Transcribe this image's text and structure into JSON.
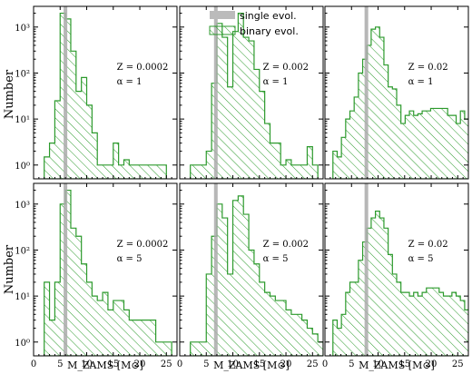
{
  "chart_data": [
    {
      "type": "histogram",
      "panel": "top-left",
      "annotation": [
        "Z = 0.0002",
        "α = 1"
      ],
      "single_evol_mass": 6.0,
      "x_edges_start": 2,
      "bin_width": 1,
      "binary_evol_counts": [
        1.5,
        3,
        25,
        2000,
        1500,
        300,
        40,
        80,
        20,
        5,
        1,
        1,
        1,
        3,
        1,
        1.3,
        1,
        1,
        1,
        1,
        1,
        1,
        1
      ]
    },
    {
      "type": "histogram",
      "panel": "top-middle",
      "annotation": [
        "Z = 0.002",
        "α = 1"
      ],
      "single_evol_mass": 6.8,
      "x_edges_start": 2,
      "bin_width": 1,
      "binary_evol_counts": [
        1,
        1,
        1,
        2,
        60,
        1200,
        600,
        50,
        800,
        2000,
        600,
        500,
        120,
        40,
        8,
        3,
        3,
        1,
        1.3,
        1,
        1,
        1,
        2.5,
        1
      ]
    },
    {
      "type": "histogram",
      "panel": "top-right",
      "annotation": [
        "Z = 0.02",
        "α = 1"
      ],
      "single_evol_mass": 7.8,
      "x_edges_start": 1.5,
      "bin_width": 0.8,
      "binary_evol_counts": [
        2,
        1.5,
        4,
        10,
        15,
        30,
        100,
        200,
        400,
        900,
        1000,
        600,
        150,
        50,
        45,
        20,
        8,
        12,
        15,
        12,
        13,
        15,
        15,
        17,
        17,
        17,
        17,
        12,
        12,
        8,
        15,
        10,
        5,
        3,
        3,
        2,
        1.5,
        3,
        1.8
      ]
    },
    {
      "type": "histogram",
      "panel": "bottom-left",
      "annotation": [
        "Z = 0.0002",
        "α = 5"
      ],
      "single_evol_mass": 6.0,
      "x_edges_start": 2,
      "bin_width": 1,
      "binary_evol_counts": [
        20,
        3,
        20,
        1000,
        2000,
        300,
        200,
        50,
        20,
        10,
        8,
        12,
        5,
        8,
        8,
        5,
        3,
        3,
        3,
        3,
        3,
        1,
        1,
        1
      ]
    },
    {
      "type": "histogram",
      "panel": "bottom-middle",
      "annotation": [
        "Z = 0.002",
        "α = 5"
      ],
      "single_evol_mass": 6.8,
      "x_edges_start": 2,
      "bin_width": 1,
      "binary_evol_counts": [
        1,
        1,
        1,
        30,
        200,
        1000,
        500,
        30,
        1200,
        1500,
        600,
        100,
        50,
        20,
        12,
        10,
        8,
        8,
        5,
        4,
        4,
        3,
        2,
        1.5,
        1
      ]
    },
    {
      "type": "histogram",
      "panel": "bottom-right",
      "annotation": [
        "Z = 0.02",
        "α = 5"
      ],
      "single_evol_mass": 7.8,
      "x_edges_start": 1.5,
      "bin_width": 0.8,
      "binary_evol_counts": [
        3,
        2,
        4,
        12,
        20,
        20,
        60,
        150,
        300,
        500,
        700,
        500,
        300,
        80,
        30,
        20,
        12,
        12,
        10,
        12,
        10,
        12,
        15,
        15,
        15,
        12,
        10,
        10,
        12,
        10,
        8,
        5,
        4,
        3,
        2,
        2,
        3,
        2,
        2,
        2
      ]
    }
  ],
  "axes": {
    "xlabel": "M_ZAMS [M⊙]",
    "ylabel": "Number",
    "xlim": [
      0,
      27
    ],
    "ylim_log10": [
      -0.3,
      3.45
    ],
    "xticks": [
      "0",
      "5",
      "10",
      "15",
      "20",
      "25"
    ],
    "yticks": [
      "10⁰",
      "10¹",
      "10²",
      "10³"
    ],
    "ytick_values": [
      0,
      1,
      2,
      3
    ]
  },
  "legend": {
    "single": "single evol.",
    "binary": "binary evol.",
    "placement": "top-center"
  },
  "colors": {
    "binary_edge": "#2c9a2c",
    "single_line": "#aaaaaa"
  }
}
